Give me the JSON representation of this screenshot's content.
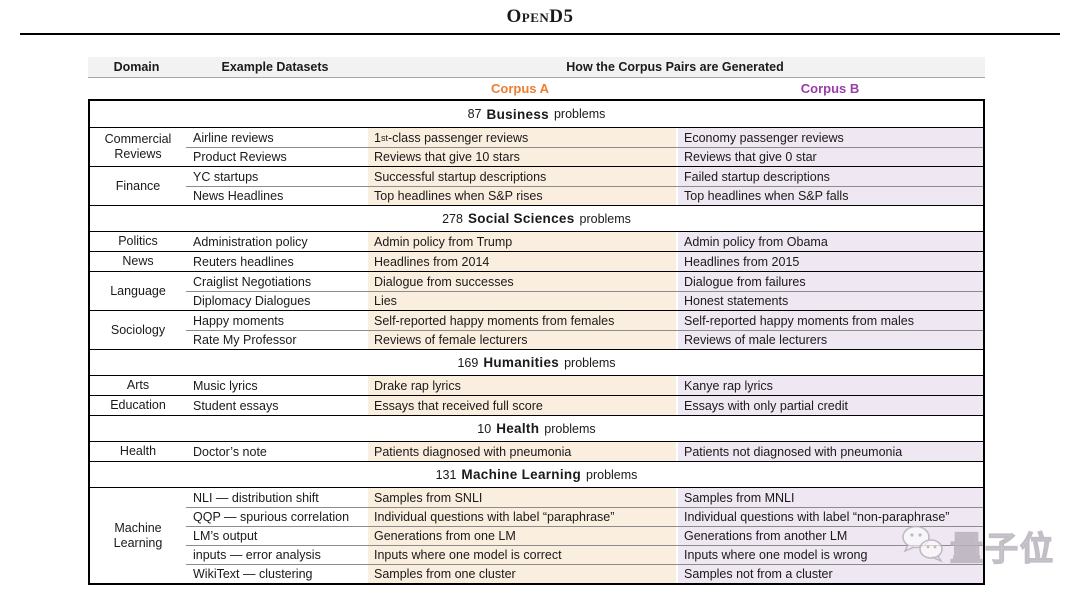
{
  "page_title": "OpenD5",
  "table": {
    "columns": {
      "domain": "Domain",
      "datasets": "Example Datasets",
      "generation": "How the Corpus Pairs are Generated"
    },
    "corpus_a_label": "Corpus A",
    "corpus_b_label": "Corpus B",
    "colors": {
      "header_bg": "#F2F2F2",
      "corpus_a_text": "#ED7D31",
      "corpus_b_text": "#9C3BAB",
      "corpus_a_bg": "#FAEEDF",
      "corpus_b_bg": "#EFE7F1"
    },
    "sections": [
      {
        "count": "87",
        "name": "Business",
        "suffix": "problems",
        "groups": [
          {
            "domain": "Commercial Reviews",
            "rows": [
              {
                "dataset": "Airline reviews",
                "corpus_a": "1st-class passenger reviews",
                "corpus_b": "Economy passenger reviews"
              },
              {
                "dataset": "Product Reviews",
                "corpus_a": "Reviews that give 10 stars",
                "corpus_b": "Reviews that give 0 star"
              }
            ]
          },
          {
            "domain": "Finance",
            "rows": [
              {
                "dataset": "YC startups",
                "corpus_a": "Successful startup descriptions",
                "corpus_b": "Failed startup descriptions"
              },
              {
                "dataset": "News Headlines",
                "corpus_a": "Top headlines when S&P rises",
                "corpus_b": "Top headlines when S&P falls"
              }
            ]
          }
        ]
      },
      {
        "count": "278",
        "name": "Social Sciences",
        "suffix": "problems",
        "groups": [
          {
            "domain": "Politics",
            "rows": [
              {
                "dataset": "Administration policy",
                "corpus_a": "Admin policy from Trump",
                "corpus_b": "Admin policy from Obama"
              }
            ]
          },
          {
            "domain": "News",
            "rows": [
              {
                "dataset": "Reuters headlines",
                "corpus_a": "Headlines from 2014",
                "corpus_b": "Headlines from 2015"
              }
            ]
          },
          {
            "domain": "Language",
            "rows": [
              {
                "dataset": "Craiglist Negotiations",
                "corpus_a": "Dialogue from successes",
                "corpus_b": "Dialogue from failures"
              },
              {
                "dataset": "Diplomacy Dialogues",
                "corpus_a": "Lies",
                "corpus_b": "Honest statements"
              }
            ]
          },
          {
            "domain": "Sociology",
            "rows": [
              {
                "dataset": "Happy moments",
                "corpus_a": "Self-reported happy moments from females",
                "corpus_b": "Self-reported happy moments from males"
              },
              {
                "dataset": "Rate My Professor",
                "corpus_a": "Reviews of female lecturers",
                "corpus_b": "Reviews of male lecturers"
              }
            ]
          }
        ]
      },
      {
        "count": "169",
        "name": "Humanities",
        "suffix": "problems",
        "groups": [
          {
            "domain": "Arts",
            "rows": [
              {
                "dataset": "Music lyrics",
                "corpus_a": "Drake rap lyrics",
                "corpus_b": "Kanye rap lyrics"
              }
            ]
          },
          {
            "domain": "Education",
            "rows": [
              {
                "dataset": "Student essays",
                "corpus_a": "Essays that received full score",
                "corpus_b": "Essays with only partial credit"
              }
            ]
          }
        ]
      },
      {
        "count": "10",
        "name": "Health",
        "suffix": "problems",
        "groups": [
          {
            "domain": "Health",
            "rows": [
              {
                "dataset": "Doctor’s note",
                "corpus_a": "Patients diagnosed with pneumonia",
                "corpus_b": "Patients not diagnosed with pneumonia"
              }
            ]
          }
        ]
      },
      {
        "count": "131",
        "name": "Machine Learning",
        "suffix": "problems",
        "groups": [
          {
            "domain": "Machine Learning",
            "rows": [
              {
                "dataset": "NLI — distribution shift",
                "corpus_a": "Samples from SNLI",
                "corpus_b": "Samples from MNLI"
              },
              {
                "dataset": "QQP — spurious correlation",
                "corpus_a": "Individual questions with label “paraphrase”",
                "corpus_b": "Individual questions with label “non-paraphrase”"
              },
              {
                "dataset": "LM’s output",
                "corpus_a": "Generations from one LM",
                "corpus_b": "Generations from another LM"
              },
              {
                "dataset": "inputs — error analysis",
                "corpus_a": "Inputs where one model is correct",
                "corpus_b": "Inputs where one model is wrong"
              },
              {
                "dataset": "WikiText — clustering",
                "corpus_a": "Samples from one cluster",
                "corpus_b": "Samples not from a cluster"
              }
            ]
          }
        ]
      }
    ]
  },
  "watermark": {
    "icon": "wechat-bubbles-icon",
    "text": "量子位"
  }
}
